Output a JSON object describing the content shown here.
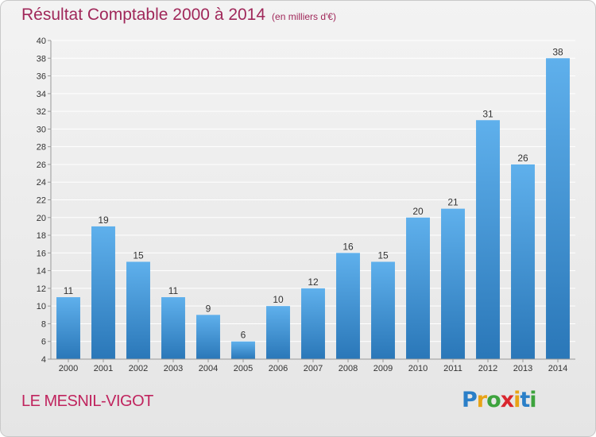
{
  "header": {
    "title": "Résultat Comptable 2000 à 2014",
    "subtitle": "(en milliers d'€)"
  },
  "footer": {
    "commune": "LE MESNIL-VIGOT",
    "brand_letters": [
      {
        "char": "P",
        "color": "#2a7fc8"
      },
      {
        "char": "r",
        "color": "#e8a317"
      },
      {
        "char": "o",
        "color": "#3da33d"
      },
      {
        "char": "x",
        "color": "#d9262e"
      },
      {
        "char": "i",
        "color": "#e8a317"
      },
      {
        "char": "t",
        "color": "#2a7fc8"
      },
      {
        "char": "i",
        "color": "#3da33d"
      }
    ]
  },
  "colors": {
    "bar_top": "#5fb0ec",
    "bar_bottom": "#2a77b8",
    "grid": "#ffffff",
    "axis": "#999999",
    "text": "#333333"
  },
  "chart_data": {
    "type": "bar",
    "categories": [
      "2000",
      "2001",
      "2002",
      "2003",
      "2004",
      "2005",
      "2006",
      "2007",
      "2008",
      "2009",
      "2010",
      "2011",
      "2012",
      "2013",
      "2014"
    ],
    "values": [
      11,
      19,
      15,
      11,
      9,
      6,
      10,
      12,
      16,
      15,
      20,
      21,
      31,
      26,
      38
    ],
    "data_labels": [
      "11",
      "19",
      "15",
      "11",
      "9",
      "6",
      "10",
      "12",
      "16",
      "15",
      "20",
      "21",
      "31",
      "26",
      "38"
    ],
    "ylim": [
      4,
      40
    ],
    "ytick_step": 2,
    "grid": true,
    "xlabel": "",
    "ylabel": ""
  }
}
